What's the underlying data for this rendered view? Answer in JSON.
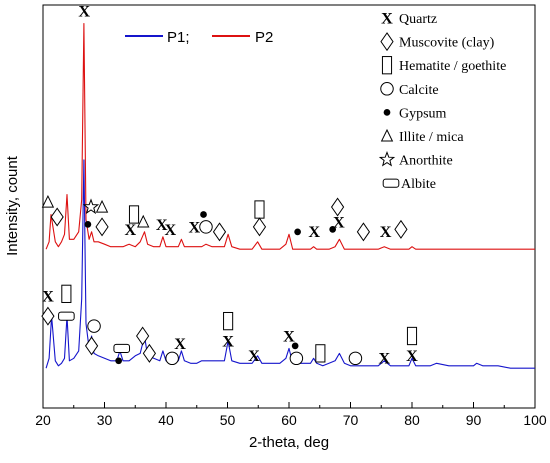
{
  "chart_data": {
    "type": "line",
    "title": "",
    "xlabel": "2-theta, deg",
    "ylabel": "Intensity, count",
    "xlim": [
      20,
      100
    ],
    "xticks": [
      20,
      30,
      40,
      50,
      60,
      70,
      80,
      90,
      100
    ],
    "ylim": [
      0,
      100
    ],
    "yticks_shown": false,
    "legend_position": "top-center",
    "series": [
      {
        "name": "P1;",
        "color": "#1515cc",
        "x": [
          20.5,
          21.0,
          21.4,
          22.0,
          22.5,
          23.0,
          23.5,
          23.9,
          24.3,
          25.0,
          25.8,
          26.3,
          26.65,
          27.0,
          27.5,
          27.9,
          28.3,
          29.0,
          30.0,
          31.0,
          32.0,
          32.5,
          33.0,
          34.0,
          35.0,
          35.8,
          36.5,
          37.0,
          38.0,
          39.0,
          39.5,
          40.0,
          41.0,
          42.0,
          42.5,
          43.0,
          44.0,
          45.0,
          45.8,
          46.5,
          47.5,
          48.5,
          49.5,
          50.1,
          50.7,
          52.0,
          53.0,
          54.0,
          54.9,
          55.6,
          57.0,
          58.5,
          59.5,
          60.0,
          60.6,
          62.0,
          63.5,
          64.0,
          64.5,
          65.5,
          66.5,
          67.5,
          68.2,
          69.0,
          70.0,
          71.5,
          73.0,
          74.5,
          75.5,
          76.5,
          78.0,
          79.5,
          80.0,
          80.6,
          81.5,
          83.0,
          84.0,
          86.0,
          88.0,
          90.0,
          90.5,
          91.5,
          94.0,
          96.0,
          98.0,
          100.0
        ],
        "y": [
          12,
          16,
          33,
          15,
          13,
          14,
          16,
          33,
          15,
          16,
          19,
          40,
          96,
          30,
          20,
          25,
          18,
          17,
          16,
          15,
          15,
          19,
          15,
          15,
          17,
          18,
          25,
          17,
          16,
          15,
          19,
          15,
          14,
          15,
          19,
          15,
          14,
          14,
          15,
          15,
          15,
          15,
          15,
          23,
          15,
          14,
          14,
          14,
          17,
          14,
          14,
          14,
          16,
          20,
          14,
          14,
          14,
          16,
          14,
          13,
          14,
          15,
          18,
          14,
          13,
          13,
          13,
          13,
          15,
          13,
          13,
          13,
          16,
          13,
          13,
          13,
          14,
          13,
          13,
          13,
          14,
          13,
          13,
          12,
          12,
          12
        ]
      },
      {
        "name": "P2",
        "color": "#dd1111",
        "x": [
          20.5,
          21.0,
          21.3,
          22.0,
          22.5,
          23.0,
          23.5,
          23.9,
          24.3,
          25.0,
          25.8,
          26.3,
          26.65,
          27.0,
          27.5,
          27.9,
          28.3,
          29.0,
          30.0,
          31.0,
          32.0,
          33.0,
          34.0,
          35.0,
          35.8,
          36.5,
          37.0,
          38.0,
          39.0,
          39.5,
          40.0,
          41.0,
          42.0,
          42.5,
          43.0,
          44.0,
          45.0,
          45.8,
          46.5,
          47.5,
          48.5,
          49.5,
          50.1,
          50.7,
          52.0,
          53.0,
          54.0,
          54.9,
          55.6,
          57.0,
          58.5,
          59.5,
          60.0,
          60.6,
          62.0,
          63.5,
          64.0,
          64.5,
          65.5,
          66.5,
          67.5,
          68.2,
          69.0,
          70.0,
          71.5,
          73.0,
          74.5,
          75.5,
          76.5,
          78.0,
          79.5,
          80.0,
          80.6,
          81.5,
          83.0,
          84.0,
          86.0,
          88.0,
          90.0,
          90.5,
          91.5,
          94.0,
          96.0,
          98.0,
          100.0
        ],
        "y": [
          60,
          63,
          74,
          63,
          61,
          63,
          66,
          82,
          64,
          64,
          67,
          80,
          151,
          72,
          64,
          67,
          63,
          63,
          62,
          61,
          61,
          61,
          62,
          61,
          63,
          67,
          62,
          61,
          61,
          65,
          61,
          61,
          61,
          64,
          61,
          61,
          61,
          61,
          62,
          61,
          61,
          61,
          66,
          61,
          60,
          60,
          60,
          63,
          60,
          60,
          60,
          62,
          66,
          60,
          60,
          60,
          61,
          60,
          60,
          60,
          61,
          64,
          60,
          60,
          60,
          60,
          60,
          61,
          60,
          60,
          60,
          61,
          60,
          60,
          60,
          60,
          60,
          60,
          60,
          60,
          60,
          60,
          60,
          60,
          60
        ]
      }
    ],
    "phase_legend": [
      {
        "symbol": "X",
        "label": "Quartz"
      },
      {
        "symbol": "◇",
        "label": "Muscovite (clay)"
      },
      {
        "symbol": "▯",
        "label": "Hematite / goethite"
      },
      {
        "symbol": "○",
        "label": "Calcite"
      },
      {
        "symbol": "●",
        "label": "Gypsum"
      },
      {
        "symbol": "△",
        "label": "Illite / mica"
      },
      {
        "symbol": "☆",
        "label": "Anorthite"
      },
      {
        "symbol": "▭",
        "label": "Albite"
      }
    ],
    "peak_markers_P2": [
      {
        "symbol": "X",
        "x": 26.7,
        "y": 156
      },
      {
        "symbol": "△",
        "x": 20.8,
        "y": 79
      },
      {
        "symbol": "◇",
        "x": 22.3,
        "y": 73
      },
      {
        "symbol": "●",
        "x": 27.3,
        "y": 70
      },
      {
        "symbol": "☆",
        "x": 27.8,
        "y": 77
      },
      {
        "symbol": "△",
        "x": 29.6,
        "y": 77
      },
      {
        "symbol": "◇",
        "x": 29.6,
        "y": 69
      },
      {
        "symbol": "X",
        "x": 34.2,
        "y": 68
      },
      {
        "symbol": "▯",
        "x": 34.8,
        "y": 74
      },
      {
        "symbol": "△",
        "x": 36.3,
        "y": 71
      },
      {
        "symbol": "X",
        "x": 39.3,
        "y": 70
      },
      {
        "symbol": "X",
        "x": 40.7,
        "y": 68
      },
      {
        "symbol": "●",
        "x": 46.1,
        "y": 74
      },
      {
        "symbol": "X",
        "x": 44.6,
        "y": 69
      },
      {
        "symbol": "○",
        "x": 46.5,
        "y": 69
      },
      {
        "symbol": "◇",
        "x": 48.7,
        "y": 67
      },
      {
        "symbol": "▯",
        "x": 55.2,
        "y": 76
      },
      {
        "symbol": "◇",
        "x": 55.2,
        "y": 69
      },
      {
        "symbol": "●",
        "x": 61.4,
        "y": 67
      },
      {
        "symbol": "X",
        "x": 64.1,
        "y": 67
      },
      {
        "symbol": "●",
        "x": 67.1,
        "y": 68
      },
      {
        "symbol": "◇",
        "x": 67.9,
        "y": 77
      },
      {
        "symbol": "X",
        "x": 68.1,
        "y": 71
      },
      {
        "symbol": "◇",
        "x": 72.1,
        "y": 67
      },
      {
        "symbol": "X",
        "x": 75.7,
        "y": 67
      },
      {
        "symbol": "◇",
        "x": 78.2,
        "y": 68
      }
    ],
    "peak_markers_P1": [
      {
        "symbol": "X",
        "x": 20.8,
        "y": 41
      },
      {
        "symbol": "◇",
        "x": 20.8,
        "y": 33
      },
      {
        "symbol": "▯",
        "x": 23.8,
        "y": 42
      },
      {
        "symbol": "▭",
        "x": 23.8,
        "y": 33
      },
      {
        "symbol": "○",
        "x": 28.3,
        "y": 29
      },
      {
        "symbol": "◇",
        "x": 27.9,
        "y": 21
      },
      {
        "symbol": "●",
        "x": 32.3,
        "y": 15
      },
      {
        "symbol": "▭",
        "x": 32.8,
        "y": 20
      },
      {
        "symbol": "◇",
        "x": 36.2,
        "y": 25
      },
      {
        "symbol": "◇",
        "x": 37.3,
        "y": 18
      },
      {
        "symbol": "X",
        "x": 42.3,
        "y": 22
      },
      {
        "symbol": "○",
        "x": 41.0,
        "y": 16
      },
      {
        "symbol": "▯",
        "x": 50.1,
        "y": 31
      },
      {
        "symbol": "X",
        "x": 50.1,
        "y": 23
      },
      {
        "symbol": "X",
        "x": 54.3,
        "y": 17
      },
      {
        "symbol": "X",
        "x": 60.0,
        "y": 25
      },
      {
        "symbol": "●",
        "x": 61.0,
        "y": 21
      },
      {
        "symbol": "○",
        "x": 61.2,
        "y": 16
      },
      {
        "symbol": "▯",
        "x": 65.1,
        "y": 18
      },
      {
        "symbol": "○",
        "x": 70.8,
        "y": 16
      },
      {
        "symbol": "X",
        "x": 75.5,
        "y": 16
      },
      {
        "symbol": "▯",
        "x": 80.0,
        "y": 25
      },
      {
        "symbol": "X",
        "x": 80.0,
        "y": 17
      }
    ]
  }
}
